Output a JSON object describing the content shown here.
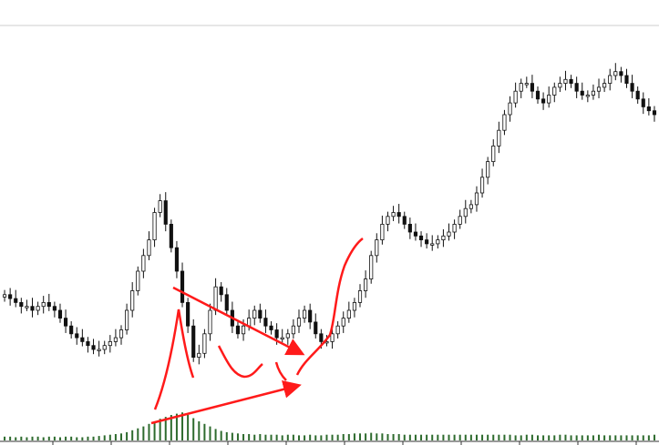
{
  "chart_data": {
    "type": "candlestick",
    "title": "",
    "xlabel": "",
    "ylabel": "",
    "grid": false,
    "legend": "none",
    "ylim": [
      0,
      100
    ],
    "volume_ylim": [
      0,
      100
    ],
    "colors": {
      "candle_outline": "#111111",
      "candle_up_fill": "#ffffff",
      "candle_down_fill": "#111111",
      "volume": "#2e6b2e",
      "annotation": "#ff1a1a",
      "top_rule": "#cccccc",
      "axis": "#333333"
    },
    "series": [
      {
        "kind": "price_close",
        "values": [
          34,
          33,
          32,
          31,
          31,
          30,
          31,
          32,
          31,
          30,
          28,
          26,
          24,
          23,
          22,
          21,
          20,
          20,
          21,
          22,
          23,
          25,
          30,
          35,
          40,
          44,
          48,
          55,
          58,
          52,
          46,
          40,
          32,
          26,
          18,
          19,
          24,
          30,
          36,
          34,
          30,
          26,
          24,
          26,
          28,
          30,
          28,
          26,
          25,
          23,
          23,
          24,
          26,
          28,
          30,
          27,
          24,
          22,
          22,
          24,
          26,
          28,
          30,
          32,
          35,
          38,
          44,
          48,
          52,
          54,
          55,
          54,
          52,
          50,
          49,
          48,
          47,
          47,
          48,
          49,
          50,
          52,
          54,
          56,
          57,
          60,
          64,
          68,
          72,
          76,
          80,
          83,
          86,
          88,
          88,
          86,
          84,
          83,
          85,
          87,
          88,
          89,
          88,
          86,
          85,
          85,
          86,
          87,
          88,
          90,
          91,
          90,
          88,
          86,
          84,
          82,
          81,
          80
        ]
      },
      {
        "kind": "volume",
        "values": [
          6,
          6,
          5,
          6,
          5,
          6,
          6,
          5,
          6,
          6,
          5,
          6,
          6,
          5,
          5,
          6,
          6,
          7,
          8,
          9,
          10,
          11,
          13,
          16,
          19,
          22,
          26,
          30,
          34,
          37,
          40,
          42,
          44,
          40,
          35,
          30,
          26,
          22,
          18,
          15,
          13,
          12,
          11,
          10,
          10,
          9,
          10,
          9,
          9,
          9,
          8,
          9,
          9,
          8,
          8,
          9,
          8,
          8,
          9,
          9,
          9,
          10,
          10,
          11,
          11,
          11,
          12,
          11,
          11,
          10,
          10,
          10,
          9,
          9,
          9,
          9,
          9,
          9,
          9,
          9,
          9,
          9,
          9,
          9,
          9,
          9,
          9,
          9,
          9,
          9,
          9,
          9,
          8,
          8,
          9,
          9,
          8,
          8,
          8,
          8,
          9,
          9,
          8,
          8,
          8,
          8,
          8,
          9,
          8,
          8,
          8,
          8,
          8,
          8,
          8,
          8,
          8,
          9
        ]
      }
    ]
  }
}
